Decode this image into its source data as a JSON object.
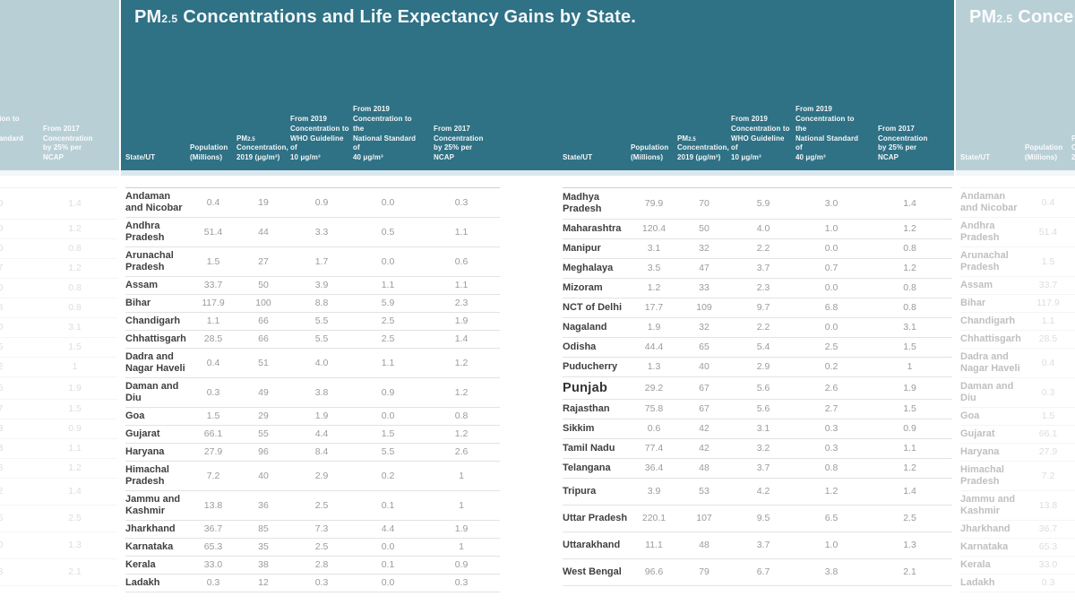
{
  "colors": {
    "band": "#2F7185",
    "band_strip": "#DAE8EE",
    "header_text": "#F3F8F9",
    "state_text": "#404040",
    "value_text": "#9B9B9B",
    "row_line": "#E3E3E3",
    "table_top_line": "#CFCFCF"
  },
  "chart_data": {
    "type": "table",
    "title": "PM2.5 Concentrations and Life Expectancy Gains by State.",
    "title_parts": {
      "prefix": "PM",
      "subscript": "2.5",
      "suffix": " Concentrations and Life Expectancy Gains by State."
    },
    "columns": [
      {
        "key": "state",
        "label": "State/UT"
      },
      {
        "key": "population",
        "label": "Population\n(Millions)"
      },
      {
        "key": "pm25",
        "label": "PM2.5 Concentration, 2019 (μg/m³)",
        "parts": {
          "prefix": "PM",
          "subscript": "2.5",
          "suffix": "\nConcentration,\n2019 (μg/m³)"
        }
      },
      {
        "key": "who",
        "label": "From 2019\nConcentration to\nWHO Guideline of\n10 μg/m³"
      },
      {
        "key": "national",
        "label": "From 2019\nConcentration to the\nNational Standard of\n40 μg/m³"
      },
      {
        "key": "ncap",
        "label": "From 2017\nConcentration\nby 25% per\nNCAP"
      }
    ],
    "left_rows": [
      {
        "state": "Andaman and Nicobar",
        "values": [
          "0.4",
          "19",
          "0.9",
          "0.0",
          "0.3"
        ]
      },
      {
        "state": "Andhra Pradesh",
        "values": [
          "51.4",
          "44",
          "3.3",
          "0.5",
          "1.1"
        ]
      },
      {
        "state": "Arunachal Pradesh",
        "values": [
          "1.5",
          "27",
          "1.7",
          "0.0",
          "0.6"
        ]
      },
      {
        "state": "Assam",
        "values": [
          "33.7",
          "50",
          "3.9",
          "1.1",
          "1.1"
        ]
      },
      {
        "state": "Bihar",
        "values": [
          "117.9",
          "100",
          "8.8",
          "5.9",
          "2.3"
        ]
      },
      {
        "state": "Chandigarh",
        "values": [
          "1.1",
          "66",
          "5.5",
          "2.5",
          "1.9"
        ]
      },
      {
        "state": "Chhattisgarh",
        "values": [
          "28.5",
          "66",
          "5.5",
          "2.5",
          "1.4"
        ]
      },
      {
        "state": "Dadra and Nagar Haveli",
        "values": [
          "0.4",
          "51",
          "4.0",
          "1.1",
          "1.2"
        ]
      },
      {
        "state": "Daman and Diu",
        "values": [
          "0.3",
          "49",
          "3.8",
          "0.9",
          "1.2"
        ]
      },
      {
        "state": "Goa",
        "values": [
          "1.5",
          "29",
          "1.9",
          "0.0",
          "0.8"
        ]
      },
      {
        "state": "Gujarat",
        "values": [
          "66.1",
          "55",
          "4.4",
          "1.5",
          "1.2"
        ]
      },
      {
        "state": "Haryana",
        "values": [
          "27.9",
          "96",
          "8.4",
          "5.5",
          "2.6"
        ]
      },
      {
        "state": "Himachal Pradesh",
        "values": [
          "7.2",
          "40",
          "2.9",
          "0.2",
          "1"
        ]
      },
      {
        "state": "Jammu and Kashmir",
        "values": [
          "13.8",
          "36",
          "2.5",
          "0.1",
          "1"
        ]
      },
      {
        "state": "Jharkhand",
        "values": [
          "36.7",
          "85",
          "7.3",
          "4.4",
          "1.9"
        ]
      },
      {
        "state": "Karnataka",
        "values": [
          "65.3",
          "35",
          "2.5",
          "0.0",
          "1"
        ]
      },
      {
        "state": "Kerala",
        "values": [
          "33.0",
          "38",
          "2.8",
          "0.1",
          "0.9"
        ]
      },
      {
        "state": "Ladakh",
        "values": [
          "0.3",
          "12",
          "0.3",
          "0.0",
          "0.3"
        ]
      }
    ],
    "right_rows": [
      {
        "state": "Madhya Pradesh",
        "values": [
          "79.9",
          "70",
          "5.9",
          "3.0",
          "1.4"
        ]
      },
      {
        "state": "Maharashtra",
        "values": [
          "120.4",
          "50",
          "4.0",
          "1.0",
          "1.2"
        ]
      },
      {
        "state": "Manipur",
        "values": [
          "3.1",
          "32",
          "2.2",
          "0.0",
          "0.8"
        ]
      },
      {
        "state": "Meghalaya",
        "values": [
          "3.5",
          "47",
          "3.7",
          "0.7",
          "1.2"
        ]
      },
      {
        "state": "Mizoram",
        "values": [
          "1.2",
          "33",
          "2.3",
          "0.0",
          "0.8"
        ]
      },
      {
        "state": "NCT of Delhi",
        "values": [
          "17.7",
          "109",
          "9.7",
          "6.8",
          "0.8"
        ]
      },
      {
        "state": "Nagaland",
        "values": [
          "1.9",
          "32",
          "2.2",
          "0.0",
          "3.1"
        ]
      },
      {
        "state": "Odisha",
        "values": [
          "44.4",
          "65",
          "5.4",
          "2.5",
          "1.5"
        ]
      },
      {
        "state": "Puducherry",
        "values": [
          "1.3",
          "40",
          "2.9",
          "0.2",
          "1"
        ]
      },
      {
        "state": "Punjab",
        "values": [
          "29.2",
          "67",
          "5.6",
          "2.6",
          "1.9"
        ],
        "emphasis": true
      },
      {
        "state": "Rajasthan",
        "values": [
          "75.8",
          "67",
          "5.6",
          "2.7",
          "1.5"
        ]
      },
      {
        "state": "Sikkim",
        "values": [
          "0.6",
          "42",
          "3.1",
          "0.3",
          "0.9"
        ]
      },
      {
        "state": "Tamil Nadu",
        "values": [
          "77.4",
          "42",
          "3.2",
          "0.3",
          "1.1"
        ]
      },
      {
        "state": "Telangana",
        "values": [
          "36.4",
          "48",
          "3.7",
          "0.8",
          "1.2"
        ]
      },
      {
        "state": "Tripura",
        "values": [
          "3.9",
          "53",
          "4.2",
          "1.2",
          "1.4"
        ]
      },
      {
        "state": "Uttar Pradesh",
        "values": [
          "220.1",
          "107",
          "9.5",
          "6.5",
          "2.5"
        ]
      },
      {
        "state": "Uttarakhand",
        "values": [
          "11.1",
          "48",
          "3.7",
          "1.0",
          "1.3"
        ]
      },
      {
        "state": "West Bengal",
        "values": [
          "96.6",
          "79",
          "6.7",
          "3.8",
          "2.1"
        ]
      }
    ]
  }
}
